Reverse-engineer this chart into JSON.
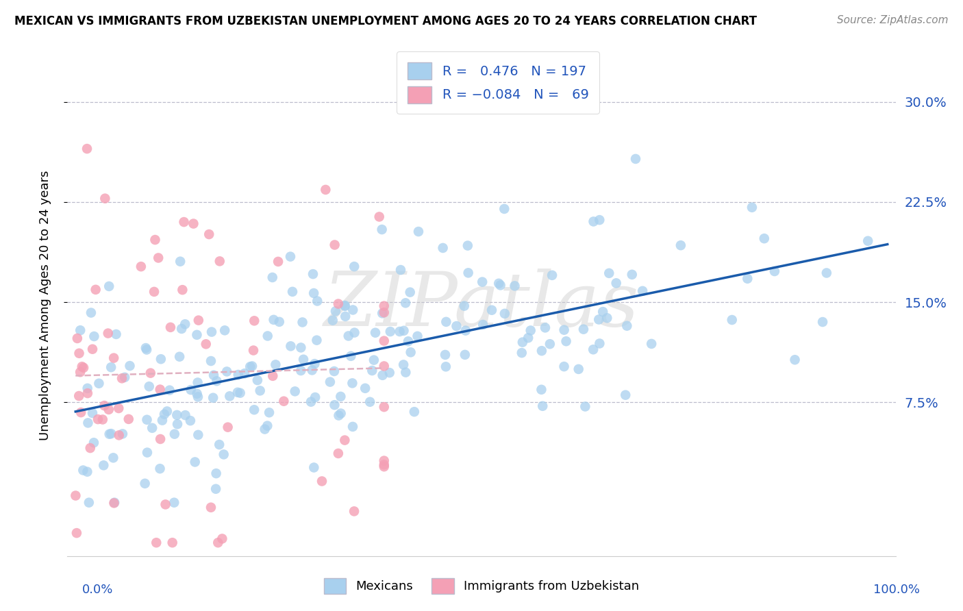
{
  "title": "MEXICAN VS IMMIGRANTS FROM UZBEKISTAN UNEMPLOYMENT AMONG AGES 20 TO 24 YEARS CORRELATION CHART",
  "source": "Source: ZipAtlas.com",
  "ylabel": "Unemployment Among Ages 20 to 24 years",
  "ytick_labels": [
    "7.5%",
    "15.0%",
    "22.5%",
    "30.0%"
  ],
  "ytick_values": [
    0.075,
    0.15,
    0.225,
    0.3
  ],
  "xlim": [
    -0.01,
    1.01
  ],
  "ylim": [
    -0.04,
    0.335
  ],
  "watermark_text": "ZIPatlas",
  "blue_color": "#A8D0EE",
  "pink_color": "#F4A0B5",
  "blue_line_color": "#1A5BAB",
  "pink_line_color": "#E0B0C0",
  "legend_text_color": "#2255BB",
  "title_fontsize": 12,
  "mexicans_R": 0.476,
  "mexicans_N": 197,
  "uzbekistan_R": -0.084,
  "uzbekistan_N": 69,
  "mex_line_x0": 0.0,
  "mex_line_y0": 0.088,
  "mex_line_x1": 1.0,
  "mex_line_y1": 0.152,
  "uzb_line_x0": 0.0,
  "uzb_line_y0": 0.092,
  "uzb_line_x1": 0.38,
  "uzb_line_y1": 0.072
}
